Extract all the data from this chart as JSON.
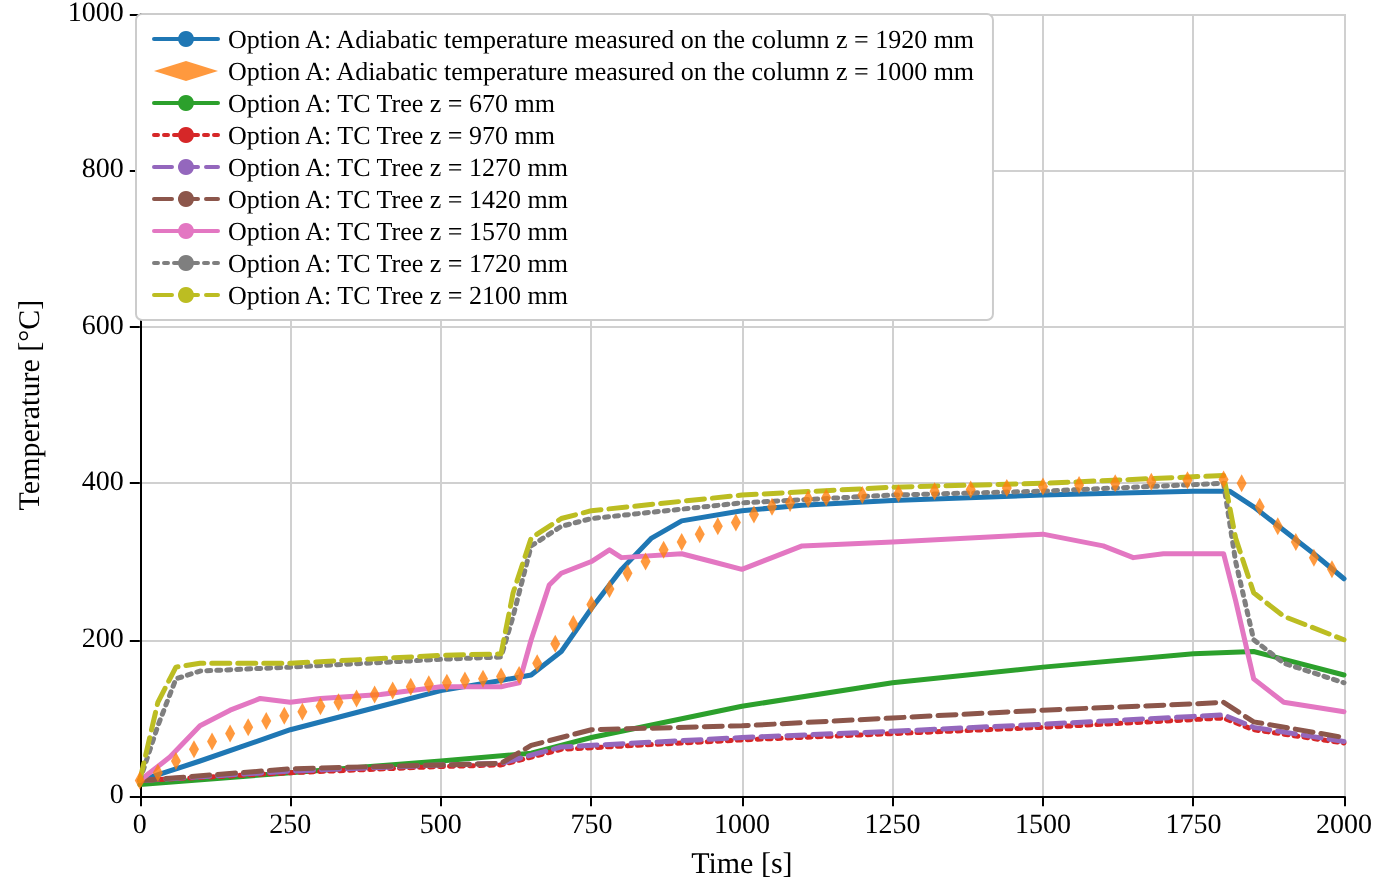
{
  "chart_data": {
    "type": "line",
    "xlabel": "Time [s]",
    "ylabel": "Temperature [°C]",
    "xlim": [
      0,
      2000
    ],
    "xticks": [
      0,
      250,
      500,
      750,
      1000,
      1250,
      1500,
      1750,
      2000
    ],
    "ylim": [
      0,
      1000
    ],
    "yticks": [
      0,
      200,
      400,
      600,
      800,
      1000
    ],
    "grid": true,
    "legend": "top left",
    "marker": "none",
    "series": [
      {
        "name": "Option A: Adiabatic temperature measured on the column z = 1920 mm",
        "color": "#1f77b4",
        "line_style": "solid",
        "x": [
          0,
          100,
          250,
          400,
          500,
          600,
          650,
          700,
          750,
          800,
          850,
          900,
          1000,
          1100,
          1250,
          1500,
          1750,
          1810,
          1850,
          1900,
          1950,
          2000
        ],
        "values": [
          20,
          45,
          85,
          115,
          135,
          148,
          155,
          185,
          240,
          290,
          330,
          352,
          365,
          372,
          378,
          385,
          390,
          390,
          370,
          340,
          310,
          278
        ]
      },
      {
        "name": "Option A: Adiabatic temperature measured on the column z = 1000 mm",
        "color": "#ff7f0e",
        "type": "scatter",
        "marker": "diamond",
        "x": [
          0,
          30,
          60,
          90,
          120,
          150,
          180,
          210,
          240,
          270,
          300,
          330,
          360,
          390,
          420,
          450,
          480,
          510,
          540,
          570,
          600,
          630,
          660,
          690,
          720,
          750,
          780,
          810,
          840,
          870,
          900,
          930,
          960,
          990,
          1020,
          1050,
          1080,
          1110,
          1140,
          1200,
          1260,
          1320,
          1380,
          1440,
          1500,
          1560,
          1620,
          1680,
          1740,
          1800,
          1830,
          1860,
          1890,
          1920,
          1950,
          1980
        ],
        "values": [
          20,
          30,
          45,
          60,
          70,
          80,
          88,
          96,
          103,
          108,
          115,
          120,
          125,
          130,
          135,
          140,
          143,
          145,
          148,
          150,
          153,
          155,
          170,
          195,
          220,
          245,
          265,
          285,
          300,
          315,
          325,
          335,
          345,
          350,
          360,
          370,
          375,
          380,
          382,
          385,
          387,
          390,
          392,
          394,
          396,
          398,
          400,
          402,
          404,
          405,
          400,
          370,
          345,
          325,
          305,
          290
        ]
      },
      {
        "name": "Option A: TC Tree z = 670 mm",
        "color": "#2ca02c",
        "line_style": "solid",
        "x": [
          0,
          250,
          500,
          650,
          750,
          1000,
          1250,
          1500,
          1750,
          1850,
          2000
        ],
        "values": [
          15,
          30,
          45,
          55,
          75,
          115,
          145,
          165,
          182,
          185,
          155
        ]
      },
      {
        "name": "Option A: TC Tree z = 970 mm",
        "color": "#d62728",
        "line_style": "dotted",
        "x": [
          0,
          250,
          500,
          600,
          700,
          1000,
          1250,
          1500,
          1750,
          1800,
          1850,
          2000
        ],
        "values": [
          20,
          30,
          38,
          40,
          60,
          72,
          80,
          88,
          98,
          100,
          85,
          68
        ]
      },
      {
        "name": "Option A: TC Tree z = 1270 mm",
        "color": "#9467bd",
        "line_style": "dashed",
        "x": [
          0,
          250,
          500,
          600,
          700,
          1000,
          1250,
          1500,
          1750,
          1800,
          1850,
          2000
        ],
        "values": [
          20,
          32,
          40,
          42,
          63,
          75,
          83,
          92,
          102,
          104,
          88,
          70
        ]
      },
      {
        "name": "Option A: TC Tree z = 1420 mm",
        "color": "#8c564b",
        "line_style": "dashed",
        "x": [
          0,
          250,
          500,
          600,
          650,
          750,
          1000,
          1250,
          1500,
          1750,
          1800,
          1850,
          2000
        ],
        "values": [
          20,
          35,
          40,
          42,
          65,
          85,
          90,
          100,
          110,
          118,
          120,
          95,
          75
        ]
      },
      {
        "name": "Option A: TC Tree z = 1570 mm",
        "color": "#e377c2",
        "line_style": "solid",
        "x": [
          0,
          50,
          100,
          150,
          200,
          250,
          300,
          400,
          500,
          600,
          630,
          650,
          680,
          700,
          750,
          780,
          800,
          900,
          950,
          1000,
          1050,
          1100,
          1250,
          1500,
          1600,
          1650,
          1700,
          1800,
          1820,
          1850,
          1900,
          2000
        ],
        "values": [
          20,
          50,
          90,
          110,
          125,
          120,
          125,
          130,
          140,
          140,
          145,
          200,
          270,
          285,
          300,
          315,
          305,
          310,
          300,
          290,
          305,
          320,
          325,
          335,
          320,
          305,
          310,
          310,
          250,
          150,
          120,
          108
        ]
      },
      {
        "name": "Option A: TC Tree z = 1720 mm",
        "color": "#7f7f7f",
        "line_style": "dotted",
        "x": [
          0,
          30,
          60,
          100,
          250,
          500,
          600,
          620,
          650,
          700,
          750,
          1000,
          1250,
          1500,
          1800,
          1820,
          1850,
          1900,
          2000
        ],
        "values": [
          20,
          90,
          150,
          160,
          165,
          175,
          178,
          230,
          320,
          345,
          355,
          375,
          385,
          390,
          400,
          300,
          200,
          170,
          145
        ]
      },
      {
        "name": "Option A: TC Tree z = 2100 mm",
        "color": "#bcbd22",
        "line_style": "dashed",
        "x": [
          0,
          30,
          60,
          100,
          250,
          500,
          600,
          620,
          650,
          700,
          750,
          1000,
          1250,
          1500,
          1800,
          1820,
          1850,
          1900,
          2000
        ],
        "values": [
          20,
          120,
          165,
          170,
          170,
          180,
          182,
          260,
          330,
          355,
          365,
          385,
          395,
          400,
          410,
          330,
          260,
          230,
          200
        ]
      }
    ]
  }
}
